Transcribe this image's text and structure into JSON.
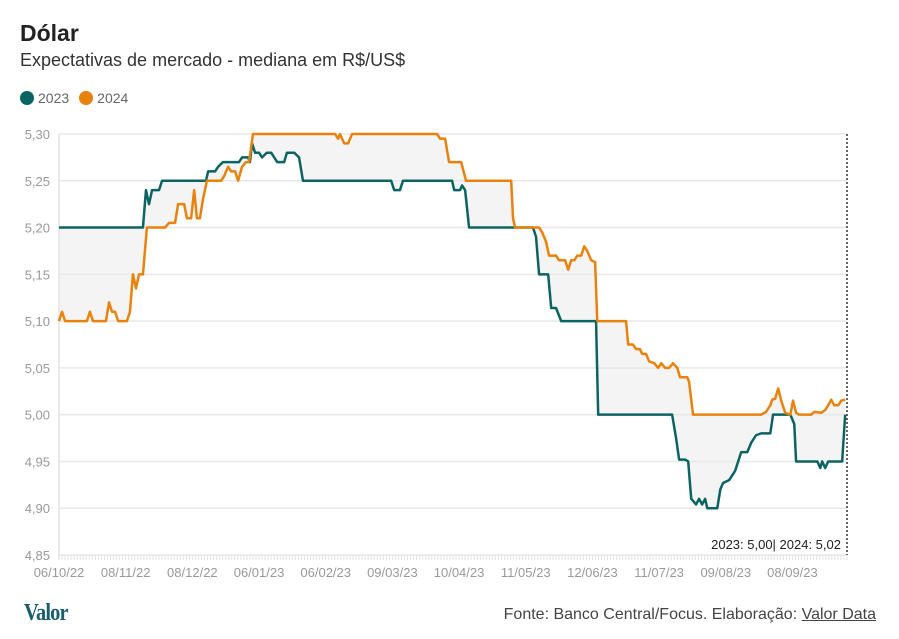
{
  "header": {
    "title": "Dólar",
    "subtitle": "Expectativas de mercado - mediana em R$/US$"
  },
  "footer": {
    "source_prefix": "Fonte: Banco Central/Focus. Elaboração: ",
    "source_link": "Valor Data",
    "logo": "Valor"
  },
  "colors": {
    "2023": "#0b6461",
    "2024": "#e8820c",
    "fill": "#f4f4f4",
    "grid": "#e8e8e8"
  },
  "chart_data": {
    "type": "line",
    "title": "Dólar",
    "subtitle": "Expectativas de mercado - mediana em R$/US$",
    "xlabel": "",
    "ylabel": "",
    "x_unit": "business-day index from 06/10/22",
    "xlim": [
      0,
      260
    ],
    "ylim": [
      4.85,
      5.3
    ],
    "yticks": [
      4.85,
      4.9,
      4.95,
      5.0,
      5.05,
      5.1,
      5.15,
      5.2,
      5.25,
      5.3
    ],
    "ytick_labels": [
      "4,85",
      "4,90",
      "4,95",
      "5,00",
      "5,05",
      "5,10",
      "5,15",
      "5,20",
      "5,25",
      "5,30"
    ],
    "xticks": [
      0,
      22,
      44,
      66,
      88,
      110,
      132,
      154,
      176,
      198,
      220,
      242
    ],
    "xtick_labels": [
      "06/10/22",
      "08/11/22",
      "08/12/22",
      "06/01/23",
      "06/02/23",
      "09/03/23",
      "10/04/23",
      "11/05/23",
      "12/06/23",
      "11/07/23",
      "09/08/23",
      "08/09/23"
    ],
    "grid": true,
    "legend": {
      "position": "top-left",
      "entries": [
        "2023",
        "2024"
      ]
    },
    "annotation": "2023: 5,00| 2024: 5,02",
    "series": [
      {
        "name": "2023",
        "points": [
          [
            0,
            5.2
          ],
          [
            27.7,
            5.2
          ],
          [
            28.7,
            5.24
          ],
          [
            29.7,
            5.225
          ],
          [
            30.7,
            5.24
          ],
          [
            33,
            5.24
          ],
          [
            34,
            5.25
          ],
          [
            48.5,
            5.25
          ],
          [
            49.2,
            5.26
          ],
          [
            51.5,
            5.26
          ],
          [
            52.5,
            5.265
          ],
          [
            54.1,
            5.27
          ],
          [
            59.4,
            5.27
          ],
          [
            60.4,
            5.275
          ],
          [
            62.4,
            5.275
          ],
          [
            63,
            5.27
          ],
          [
            63.7,
            5.29
          ],
          [
            64.7,
            5.28
          ],
          [
            66,
            5.28
          ],
          [
            67,
            5.275
          ],
          [
            68.6,
            5.28
          ],
          [
            70,
            5.28
          ],
          [
            72,
            5.27
          ],
          [
            74.3,
            5.27
          ],
          [
            75.2,
            5.28
          ],
          [
            77.6,
            5.28
          ],
          [
            79.2,
            5.275
          ],
          [
            80.5,
            5.25
          ],
          [
            109.6,
            5.25
          ],
          [
            110.6,
            5.24
          ],
          [
            112.5,
            5.24
          ],
          [
            113.5,
            5.25
          ],
          [
            129.7,
            5.25
          ],
          [
            130.4,
            5.24
          ],
          [
            132.3,
            5.24
          ],
          [
            133,
            5.245
          ],
          [
            134,
            5.24
          ],
          [
            135.3,
            5.2
          ],
          [
            156.4,
            5.2
          ],
          [
            157.4,
            5.19
          ],
          [
            158.4,
            5.15
          ],
          [
            161.4,
            5.15
          ],
          [
            162.4,
            5.114
          ],
          [
            164,
            5.114
          ],
          [
            165.7,
            5.1
          ],
          [
            177.2,
            5.1
          ],
          [
            177.9,
            5.0
          ],
          [
            202.3,
            5.0
          ],
          [
            203.6,
            4.975
          ],
          [
            204.6,
            4.952
          ],
          [
            206.6,
            4.952
          ],
          [
            207.6,
            4.95
          ],
          [
            208.6,
            4.91
          ],
          [
            210.2,
            4.904
          ],
          [
            211.2,
            4.91
          ],
          [
            212.2,
            4.904
          ],
          [
            213.2,
            4.91
          ],
          [
            213.9,
            4.9
          ],
          [
            217.2,
            4.9
          ],
          [
            218.2,
            4.92
          ],
          [
            219.1,
            4.927
          ],
          [
            221.1,
            4.93
          ],
          [
            223.1,
            4.94
          ],
          [
            225.1,
            4.96
          ],
          [
            227.1,
            4.96
          ],
          [
            228.4,
            4.97
          ],
          [
            230,
            4.978
          ],
          [
            231.7,
            4.98
          ],
          [
            234.7,
            4.98
          ],
          [
            235.6,
            5.0
          ],
          [
            241.3,
            5.0
          ],
          [
            242.6,
            4.99
          ],
          [
            243.2,
            4.95
          ],
          [
            250.2,
            4.95
          ],
          [
            251.2,
            4.943
          ],
          [
            251.8,
            4.95
          ],
          [
            252.8,
            4.943
          ],
          [
            253.8,
            4.95
          ],
          [
            258.4,
            4.95
          ],
          [
            259.4,
            5.0
          ]
        ]
      },
      {
        "name": "2024",
        "points": [
          [
            0,
            5.1
          ],
          [
            1,
            5.11
          ],
          [
            2,
            5.1
          ],
          [
            9.2,
            5.1
          ],
          [
            10.2,
            5.11
          ],
          [
            11.2,
            5.1
          ],
          [
            15.5,
            5.1
          ],
          [
            16.5,
            5.12
          ],
          [
            17.5,
            5.11
          ],
          [
            18.5,
            5.11
          ],
          [
            19.5,
            5.1
          ],
          [
            22.4,
            5.1
          ],
          [
            23.4,
            5.11
          ],
          [
            24.4,
            5.15
          ],
          [
            25.4,
            5.135
          ],
          [
            26.4,
            5.15
          ],
          [
            27.7,
            5.15
          ],
          [
            29,
            5.2
          ],
          [
            35,
            5.2
          ],
          [
            36.3,
            5.205
          ],
          [
            38.3,
            5.205
          ],
          [
            39.3,
            5.225
          ],
          [
            41.3,
            5.225
          ],
          [
            42.2,
            5.21
          ],
          [
            43.6,
            5.21
          ],
          [
            44.6,
            5.24
          ],
          [
            45.5,
            5.21
          ],
          [
            46.5,
            5.21
          ],
          [
            47.5,
            5.23
          ],
          [
            48.8,
            5.25
          ],
          [
            53.5,
            5.25
          ],
          [
            54.5,
            5.255
          ],
          [
            55.8,
            5.265
          ],
          [
            56.8,
            5.26
          ],
          [
            58.1,
            5.26
          ],
          [
            59.1,
            5.25
          ],
          [
            60.4,
            5.265
          ],
          [
            61.7,
            5.27
          ],
          [
            62.7,
            5.27
          ],
          [
            64,
            5.3
          ],
          [
            91.1,
            5.3
          ],
          [
            92.1,
            5.295
          ],
          [
            92.7,
            5.3
          ],
          [
            94.1,
            5.29
          ],
          [
            95.4,
            5.29
          ],
          [
            96.7,
            5.3
          ],
          [
            124.8,
            5.3
          ],
          [
            125.7,
            5.295
          ],
          [
            127.4,
            5.295
          ],
          [
            128.7,
            5.27
          ],
          [
            132.7,
            5.27
          ],
          [
            134.3,
            5.25
          ],
          [
            149.2,
            5.25
          ],
          [
            149.8,
            5.21
          ],
          [
            150.5,
            5.2
          ],
          [
            158.4,
            5.2
          ],
          [
            159.4,
            5.195
          ],
          [
            160.7,
            5.185
          ],
          [
            161.7,
            5.17
          ],
          [
            164,
            5.17
          ],
          [
            165,
            5.165
          ],
          [
            167,
            5.165
          ],
          [
            168,
            5.155
          ],
          [
            169,
            5.165
          ],
          [
            170,
            5.165
          ],
          [
            171,
            5.17
          ],
          [
            172.3,
            5.17
          ],
          [
            173.3,
            5.18
          ],
          [
            174.3,
            5.175
          ],
          [
            175.6,
            5.165
          ],
          [
            176.9,
            5.163
          ],
          [
            177.6,
            5.1
          ],
          [
            187.1,
            5.1
          ],
          [
            187.8,
            5.075
          ],
          [
            189.4,
            5.075
          ],
          [
            190.4,
            5.07
          ],
          [
            191.7,
            5.07
          ],
          [
            192.4,
            5.065
          ],
          [
            193.7,
            5.065
          ],
          [
            194.7,
            5.057
          ],
          [
            196.4,
            5.055
          ],
          [
            197.7,
            5.05
          ],
          [
            198.7,
            5.055
          ],
          [
            200,
            5.05
          ],
          [
            201.3,
            5.05
          ],
          [
            202.6,
            5.055
          ],
          [
            204,
            5.05
          ],
          [
            204.9,
            5.04
          ],
          [
            207.3,
            5.04
          ],
          [
            207.9,
            5.035
          ],
          [
            209.2,
            5.0
          ],
          [
            231.7,
            5.0
          ],
          [
            233.3,
            5.003
          ],
          [
            234.7,
            5.01
          ],
          [
            235.3,
            5.016
          ],
          [
            236.3,
            5.017
          ],
          [
            237.3,
            5.028
          ],
          [
            238.3,
            5.015
          ],
          [
            239.6,
            5.002
          ],
          [
            241.3,
            5.0
          ],
          [
            242.2,
            5.015
          ],
          [
            243.2,
            5.002
          ],
          [
            244.2,
            5.0
          ],
          [
            248.2,
            5.0
          ],
          [
            249.2,
            5.003
          ],
          [
            251.5,
            5.002
          ],
          [
            252.8,
            5.005
          ],
          [
            253.8,
            5.01
          ],
          [
            254.8,
            5.016
          ],
          [
            255.8,
            5.01
          ],
          [
            257.1,
            5.01
          ],
          [
            258.1,
            5.015
          ],
          [
            259.4,
            5.016
          ]
        ]
      }
    ]
  }
}
